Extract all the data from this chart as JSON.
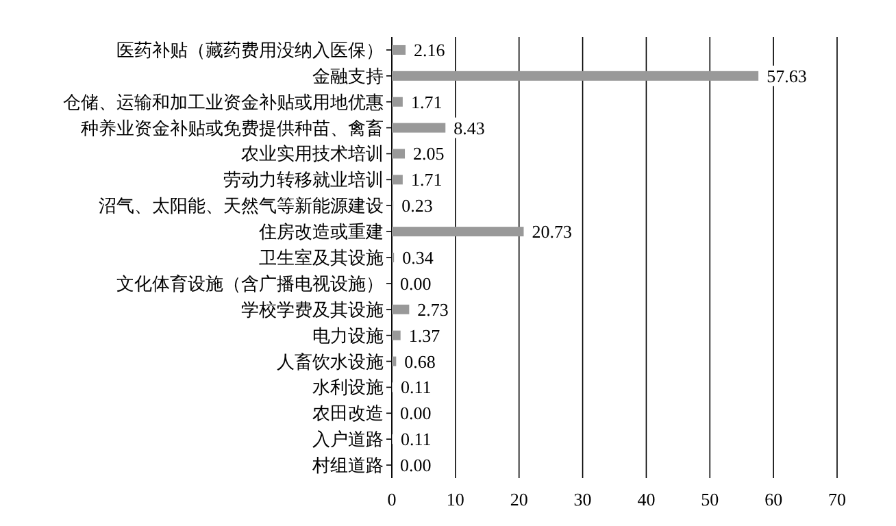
{
  "chart_data": {
    "type": "bar",
    "orientation": "horizontal",
    "categories": [
      "医药补贴（藏药费用没纳入医保）",
      "金融支持",
      "仓储、运输和加工业资金补贴或用地优惠",
      "种养业资金补贴或免费提供种苗、禽畜",
      "农业实用技术培训",
      "劳动力转移就业培训",
      "沼气、太阳能、天然气等新能源建设",
      "住房改造或重建",
      "卫生室及其设施",
      "文化体育设施（含广播电视设施）",
      "学校学费及其设施",
      "电力设施",
      "人畜饮水设施",
      "水利设施",
      "农田改造",
      "入户道路",
      "村组道路"
    ],
    "values": [
      2.16,
      57.63,
      1.71,
      8.43,
      2.05,
      1.71,
      0.23,
      20.73,
      0.34,
      0.0,
      2.73,
      1.37,
      0.68,
      0.11,
      0.0,
      0.11,
      0.0
    ],
    "value_labels": [
      "2.16",
      "57.63",
      "1.71",
      "8.43",
      "2.05",
      "1.71",
      "0.23",
      "20.73",
      "0.34",
      "0.00",
      "2.73",
      "1.37",
      "0.68",
      "0.11",
      "0.00",
      "0.11",
      "0.00"
    ],
    "color": "#999999",
    "xlim": [
      0,
      70
    ],
    "xticks": [
      0,
      10,
      20,
      30,
      40,
      50,
      60,
      70
    ],
    "grid": "x",
    "data_labels": true
  }
}
